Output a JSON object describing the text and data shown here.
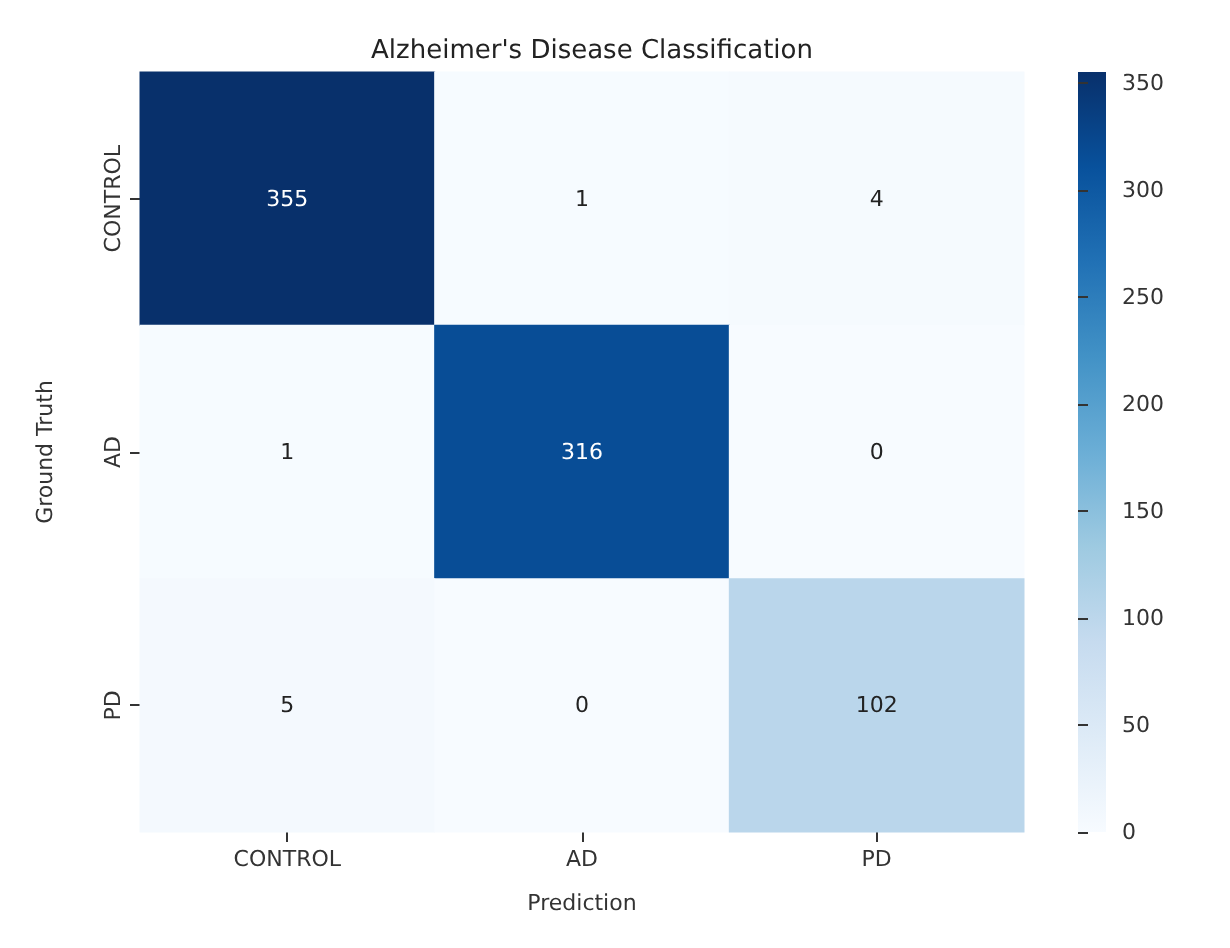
{
  "chart_data": {
    "type": "heatmap",
    "title": "Alzheimer's Disease Classification",
    "xlabel": "Prediction",
    "ylabel": "Ground Truth",
    "categories": [
      "CONTROL",
      "AD",
      "PD"
    ],
    "y_categories": [
      "CONTROL",
      "AD",
      "PD"
    ],
    "cells": [
      [
        355,
        1,
        4
      ],
      [
        1,
        316,
        0
      ],
      [
        5,
        0,
        102
      ]
    ],
    "clim": [
      0,
      355
    ],
    "cticks": [
      0,
      50,
      100,
      150,
      200,
      250,
      300,
      350
    ],
    "data_labels": true
  }
}
